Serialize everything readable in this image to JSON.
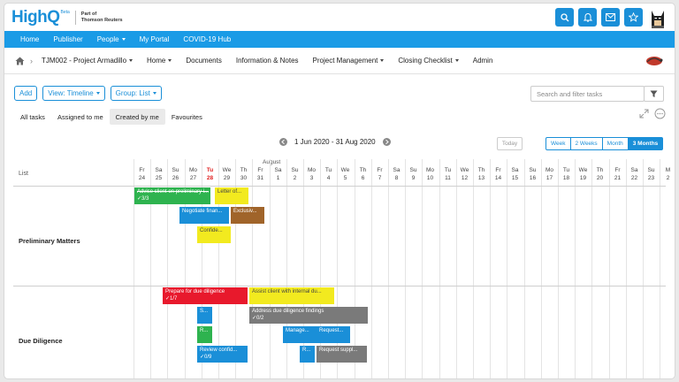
{
  "brand": {
    "name": "HighQ",
    "beta": "Beta",
    "subtitle_line1": "Part of",
    "subtitle_line2": "Thomson Reuters"
  },
  "top_icons": [
    "search-icon",
    "bell-icon",
    "mail-icon",
    "star-icon"
  ],
  "main_nav": [
    {
      "label": "Home",
      "dropdown": false
    },
    {
      "label": "Publisher",
      "dropdown": false
    },
    {
      "label": "People",
      "dropdown": true
    },
    {
      "label": "My Portal",
      "dropdown": false
    },
    {
      "label": "COVID-19 Hub",
      "dropdown": false
    }
  ],
  "project_nav": [
    {
      "label": "TJM002 - Project Armadillo",
      "dropdown": true
    },
    {
      "label": "Home",
      "dropdown": true
    },
    {
      "label": "Documents",
      "dropdown": false
    },
    {
      "label": "Information & Notes",
      "dropdown": false
    },
    {
      "label": "Project Management",
      "dropdown": true
    },
    {
      "label": "Closing Checklist",
      "dropdown": true
    },
    {
      "label": "Admin",
      "dropdown": false
    }
  ],
  "toolbar": {
    "add": "Add",
    "view": "View: Timeline",
    "group": "Group: List"
  },
  "search": {
    "placeholder": "Search and filter tasks"
  },
  "subtabs": [
    {
      "label": "All tasks",
      "active": false
    },
    {
      "label": "Assigned to me",
      "active": false
    },
    {
      "label": "Created by me",
      "active": true
    },
    {
      "label": "Favourites",
      "active": false
    }
  ],
  "date_range": "1 Jun 2020 - 31 Aug 2020",
  "today_label": "Today",
  "range_buttons": [
    {
      "label": "Week",
      "active": false
    },
    {
      "label": "2 Weeks",
      "active": false
    },
    {
      "label": "Month",
      "active": false
    },
    {
      "label": "3 Months",
      "active": true
    }
  ],
  "gantt": {
    "list_header": "List",
    "month_label": "August",
    "days": [
      {
        "dow": "Fr",
        "num": "24"
      },
      {
        "dow": "Sa",
        "num": "25"
      },
      {
        "dow": "Su",
        "num": "26"
      },
      {
        "dow": "Mo",
        "num": "27"
      },
      {
        "dow": "Tu",
        "num": "28",
        "today": true
      },
      {
        "dow": "We",
        "num": "29"
      },
      {
        "dow": "Th",
        "num": "30"
      },
      {
        "dow": "Fr",
        "num": "31"
      },
      {
        "dow": "Sa",
        "num": "1"
      },
      {
        "dow": "Su",
        "num": "2"
      },
      {
        "dow": "Mo",
        "num": "3"
      },
      {
        "dow": "Tu",
        "num": "4"
      },
      {
        "dow": "We",
        "num": "5"
      },
      {
        "dow": "Th",
        "num": "6"
      },
      {
        "dow": "Fr",
        "num": "7"
      },
      {
        "dow": "Sa",
        "num": "8"
      },
      {
        "dow": "Su",
        "num": "9"
      },
      {
        "dow": "Mo",
        "num": "10"
      },
      {
        "dow": "Tu",
        "num": "11"
      },
      {
        "dow": "We",
        "num": "12"
      },
      {
        "dow": "Th",
        "num": "13"
      },
      {
        "dow": "Fr",
        "num": "14"
      },
      {
        "dow": "Sa",
        "num": "15"
      },
      {
        "dow": "Su",
        "num": "16"
      },
      {
        "dow": "Mo",
        "num": "17"
      },
      {
        "dow": "Tu",
        "num": "18"
      },
      {
        "dow": "We",
        "num": "19"
      },
      {
        "dow": "Th",
        "num": "20"
      },
      {
        "dow": "Fr",
        "num": "21"
      },
      {
        "dow": "Sa",
        "num": "22"
      },
      {
        "dow": "Su",
        "num": "23"
      },
      {
        "dow": "M",
        "num": "2"
      }
    ],
    "groups": [
      {
        "label": "Preliminary Matters",
        "tasks": [
          {
            "title": "Advise client on preliminary i...",
            "sub": "3/3",
            "color": "green",
            "strike": true
          },
          {
            "title": "Letter of...",
            "sub": "",
            "color": "yellow"
          },
          {
            "title": "Negotiate finan...",
            "sub": "",
            "color": "blue"
          },
          {
            "title": "Exclusiv...",
            "sub": "",
            "color": "brown"
          },
          {
            "title": "Confide...",
            "sub": "",
            "color": "yellow"
          }
        ]
      },
      {
        "label": "Due Diligence",
        "tasks": [
          {
            "title": "Prepare for due diligence",
            "sub": "1/7",
            "color": "red"
          },
          {
            "title": "Assist client with internal du...",
            "sub": "",
            "color": "yellow"
          },
          {
            "title": "S...",
            "sub": "",
            "color": "blue"
          },
          {
            "title": "Address due diligence findings",
            "sub": "0/2",
            "color": "gray"
          },
          {
            "title": "R...",
            "sub": "",
            "color": "green"
          },
          {
            "title": "Manage...",
            "sub": "",
            "color": "blue"
          },
          {
            "title": "Request...",
            "sub": "",
            "color": "blue"
          },
          {
            "title": "Review confid...",
            "sub": "0/9",
            "color": "blue"
          },
          {
            "title": "R...",
            "sub": "",
            "color": "blue"
          },
          {
            "title": "Request suppl...",
            "sub": "",
            "color": "gray"
          }
        ]
      }
    ]
  }
}
